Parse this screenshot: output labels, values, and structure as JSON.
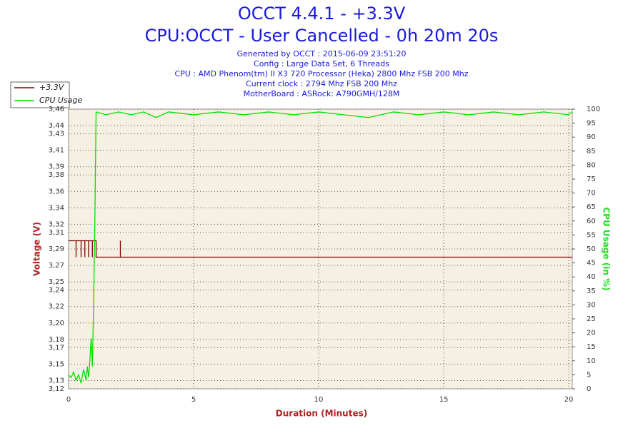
{
  "chart_data": {
    "type": "line",
    "title": "OCCT 4.4.1 - +3.3V",
    "subtitle": "CPU:OCCT - User Cancelled - 0h 20m 20s",
    "info": [
      "Generated by OCCT : 2015-06-09 23:51:20",
      "Config : Large Data Set, 6 Threads",
      "CPU : AMD Phenom(tm) II X3 720 Processor (Heka) 2800 Mhz FSB 200 Mhz",
      "Current clock : 2794 Mhz FSB 200 Mhz",
      "MotherBoard : ASRock: A790GMH/128M"
    ],
    "x_label": "Duration (Minutes)",
    "y_label": "Voltage (V)",
    "y2_label": "CPU Usage (in %)",
    "xlim": [
      0,
      20.14
    ],
    "xticks": [
      0,
      5,
      10,
      15,
      20
    ],
    "ylim": [
      3.12,
      3.46
    ],
    "yticks": [
      {
        "value": 3.12,
        "label": "3,12"
      },
      {
        "value": 3.13,
        "label": "3,13"
      },
      {
        "value": 3.15,
        "label": "3,15"
      },
      {
        "value": 3.17,
        "label": "3,17"
      },
      {
        "value": 3.18,
        "label": "3,18"
      },
      {
        "value": 3.2,
        "label": "3,20"
      },
      {
        "value": 3.22,
        "label": "3,22"
      },
      {
        "value": 3.24,
        "label": "3,24"
      },
      {
        "value": 3.25,
        "label": "3,25"
      },
      {
        "value": 3.27,
        "label": "3,27"
      },
      {
        "value": 3.29,
        "label": "3,29"
      },
      {
        "value": 3.31,
        "label": "3,31"
      },
      {
        "value": 3.32,
        "label": "3,32"
      },
      {
        "value": 3.34,
        "label": "3,34"
      },
      {
        "value": 3.36,
        "label": "3,36"
      },
      {
        "value": 3.38,
        "label": "3,38"
      },
      {
        "value": 3.39,
        "label": "3,39"
      },
      {
        "value": 3.41,
        "label": "3,41"
      },
      {
        "value": 3.43,
        "label": "3,43"
      },
      {
        "value": 3.44,
        "label": "3,44"
      },
      {
        "value": 3.46,
        "label": "3,46"
      }
    ],
    "y2lim": [
      0,
      100
    ],
    "y2ticks": [
      0,
      5,
      10,
      15,
      20,
      25,
      30,
      35,
      40,
      45,
      50,
      55,
      60,
      65,
      70,
      75,
      80,
      85,
      90,
      95,
      100
    ],
    "grid": true,
    "legend": "top-left",
    "series": [
      {
        "name": "+3.3V",
        "color": "#800000",
        "x": [
          0,
          0.3,
          0.3,
          0.3,
          0.5,
          0.5,
          0.5,
          0.65,
          0.65,
          0.65,
          0.8,
          0.8,
          0.8,
          0.95,
          0.95,
          0.95,
          1.1,
          1.1,
          2.07,
          2.07,
          2.07,
          20.14
        ],
        "values": [
          3.3,
          3.3,
          3.28,
          3.3,
          3.3,
          3.28,
          3.3,
          3.3,
          3.28,
          3.3,
          3.3,
          3.28,
          3.3,
          3.3,
          3.28,
          3.3,
          3.3,
          3.28,
          3.28,
          3.3,
          3.28,
          3.28
        ]
      },
      {
        "name": "CPU Usage",
        "color": "#00e000",
        "axis": "y2",
        "x": [
          0,
          0.1,
          0.2,
          0.3,
          0.4,
          0.5,
          0.6,
          0.7,
          0.75,
          0.8,
          0.85,
          0.9,
          0.95,
          1.0,
          1.05,
          1.1,
          1.5,
          2,
          2.5,
          3,
          3.5,
          4,
          5,
          6,
          7,
          8,
          9,
          10,
          11,
          12,
          13,
          14,
          15,
          16,
          17,
          18,
          19,
          20,
          20.14
        ],
        "values": [
          5,
          4,
          6,
          3,
          5,
          2,
          7,
          3,
          8,
          4,
          10,
          18,
          8,
          30,
          60,
          99,
          98,
          99,
          98,
          99,
          97,
          99,
          98,
          99,
          98,
          99,
          98,
          99,
          98,
          97,
          99,
          98,
          99,
          98,
          99,
          98,
          99,
          98,
          99
        ]
      }
    ]
  }
}
